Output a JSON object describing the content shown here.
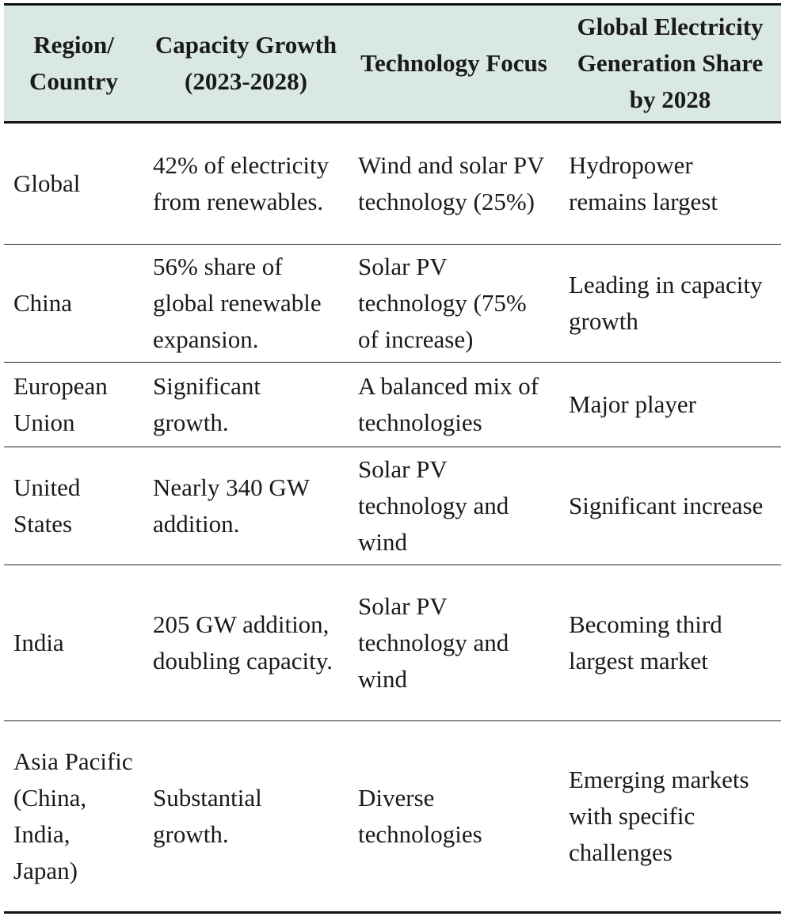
{
  "table": {
    "headers": [
      "Region/ Country",
      "Capacity Growth (2023-2028)",
      "Technology Focus",
      "Global Electricity Generation Share by 2028"
    ],
    "rows": [
      [
        "Global",
        "42% of electricity from renewables.",
        "Wind and solar PV technology (25%)",
        "Hydropower remains largest"
      ],
      [
        "China",
        "56% share of global renewable expansion.",
        "Solar PV technology (75% of increase)",
        "Leading in capacity growth"
      ],
      [
        "European Union",
        "Significant growth.",
        "A balanced mix of technologies",
        "Major player"
      ],
      [
        "United States",
        "Nearly 340 GW addition.",
        "Solar PV technology and wind",
        "Significant increase"
      ],
      [
        "India",
        "205 GW addition, doubling capacity.",
        "Solar PV technology and wind",
        "Becoming third largest market"
      ],
      [
        "Asia Pacific (China, India, Japan)",
        "Substantial growth.",
        "Diverse technologies",
        "Emerging markets with specific challenges"
      ]
    ]
  }
}
